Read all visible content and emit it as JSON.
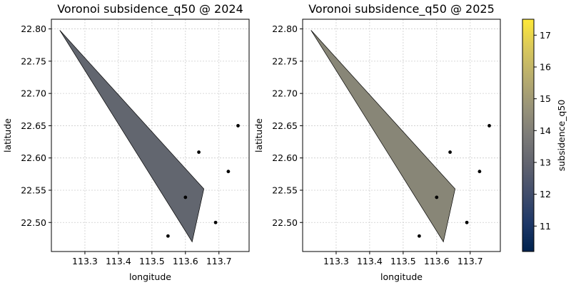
{
  "chart_data": [
    {
      "type": "scatter",
      "title": "Voronoi subsidence_q50 @ 2024",
      "xlabel": "longitude",
      "ylabel": "latitude",
      "xlim": [
        113.2,
        113.79
      ],
      "ylim": [
        22.455,
        22.815
      ],
      "xticks": [
        "113.3",
        "113.4",
        "113.5",
        "113.6",
        "113.7"
      ],
      "yticks": [
        "22.50",
        "22.55",
        "22.60",
        "22.65",
        "22.70",
        "22.75",
        "22.80"
      ],
      "grid": true,
      "polygon": {
        "vertices": [
          [
            113.225,
            22.798
          ],
          [
            113.655,
            22.552
          ],
          [
            113.62,
            22.47
          ]
        ],
        "value": 13.2,
        "color": "#62666f"
      },
      "points": [
        {
          "x": 113.757,
          "y": 22.65
        },
        {
          "x": 113.64,
          "y": 22.609
        },
        {
          "x": 113.728,
          "y": 22.579
        },
        {
          "x": 113.6,
          "y": 22.539
        },
        {
          "x": 113.69,
          "y": 22.5
        },
        {
          "x": 113.548,
          "y": 22.479
        }
      ]
    },
    {
      "type": "scatter",
      "title": "Voronoi subsidence_q50 @ 2025",
      "xlabel": "longitude",
      "ylabel": "latitude",
      "xlim": [
        113.2,
        113.79
      ],
      "ylim": [
        22.455,
        22.815
      ],
      "xticks": [
        "113.3",
        "113.4",
        "113.5",
        "113.6",
        "113.7"
      ],
      "yticks": [
        "22.50",
        "22.55",
        "22.60",
        "22.65",
        "22.70",
        "22.75",
        "22.80"
      ],
      "grid": true,
      "polygon": {
        "vertices": [
          [
            113.225,
            22.798
          ],
          [
            113.655,
            22.552
          ],
          [
            113.62,
            22.47
          ]
        ],
        "value": 14.3,
        "color": "#888677"
      },
      "points": [
        {
          "x": 113.757,
          "y": 22.65
        },
        {
          "x": 113.64,
          "y": 22.609
        },
        {
          "x": 113.728,
          "y": 22.579
        },
        {
          "x": 113.6,
          "y": 22.539
        },
        {
          "x": 113.69,
          "y": 22.5
        },
        {
          "x": 113.548,
          "y": 22.479
        }
      ]
    }
  ],
  "colorbar": {
    "label": "subsidence_q50",
    "colormap": "cividis",
    "range": [
      10.2,
      17.5
    ],
    "ticks": [
      "11",
      "12",
      "13",
      "14",
      "15",
      "16",
      "17"
    ]
  }
}
